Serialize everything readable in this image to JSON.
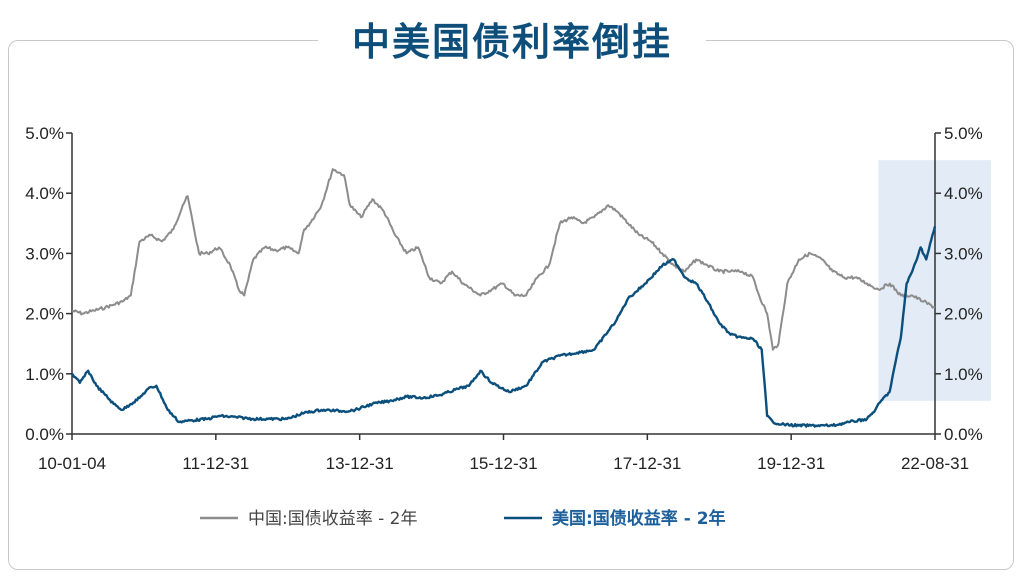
{
  "title": "中美国债利率倒挂",
  "chart_data": {
    "type": "line",
    "title": "中美国债利率倒挂",
    "x_range": [
      "2010-01-04",
      "2022-08-31"
    ],
    "x_tick_labels": [
      "10-01-04",
      "11-12-31",
      "13-12-31",
      "15-12-31",
      "17-12-31",
      "19-12-31",
      "22-08-31"
    ],
    "y_left": {
      "ylim": [
        0,
        5
      ],
      "ticks": [
        "0.0%",
        "1.0%",
        "2.0%",
        "3.0%",
        "4.0%",
        "5.0%"
      ]
    },
    "y_right": {
      "ylim": [
        0,
        5
      ],
      "ticks": [
        "0.0%",
        "1.0%",
        "2.0%",
        "3.0%",
        "4.0%",
        "5.0%"
      ]
    },
    "grid": false,
    "legend_position": "bottom",
    "highlight_region": {
      "x_start": "2021-11-01",
      "x_end": "2022-08-31",
      "y_range": [
        0.55,
        4.55
      ],
      "color": "#e3ecf6"
    },
    "series": [
      {
        "name": "中国:国债收益率 - 2年",
        "color": "#8c8c8c",
        "x": [
          "2010-01-04",
          "2010-03-01",
          "2010-05-01",
          "2010-07-01",
          "2010-08-15",
          "2010-10-01",
          "2010-11-15",
          "2011-01-01",
          "2011-03-01",
          "2011-05-01",
          "2011-07-01",
          "2011-08-20",
          "2011-09-15",
          "2011-10-20",
          "2011-11-15",
          "2012-01-01",
          "2012-03-01",
          "2012-05-01",
          "2012-06-15",
          "2012-07-15",
          "2012-09-01",
          "2012-11-01",
          "2013-01-01",
          "2013-03-01",
          "2013-05-01",
          "2013-06-01",
          "2013-07-01",
          "2013-09-01",
          "2013-11-01",
          "2013-12-31",
          "2014-02-01",
          "2014-04-01",
          "2014-06-01",
          "2014-08-01",
          "2014-10-01",
          "2014-12-01",
          "2015-02-01",
          "2015-04-01",
          "2015-06-01",
          "2015-08-01",
          "2015-10-01",
          "2015-12-31",
          "2016-03-01",
          "2016-05-01",
          "2016-07-01",
          "2016-09-01",
          "2016-11-01",
          "2017-01-01",
          "2017-03-01",
          "2017-05-01",
          "2017-07-01",
          "2017-09-01",
          "2017-11-15",
          "2018-01-01",
          "2018-03-01",
          "2018-05-01",
          "2018-07-01",
          "2018-09-01",
          "2018-11-01",
          "2019-01-01",
          "2019-03-01",
          "2019-05-01",
          "2019-07-01",
          "2019-09-01",
          "2019-11-01",
          "2019-12-31",
          "2020-02-01",
          "2020-03-15",
          "2020-04-15",
          "2020-05-15",
          "2020-07-01",
          "2020-09-01",
          "2020-11-01",
          "2021-01-01",
          "2021-03-01",
          "2021-05-01",
          "2021-07-01",
          "2021-09-01",
          "2021-11-01",
          "2022-01-01",
          "2022-03-01",
          "2022-05-01",
          "2022-07-01",
          "2022-08-31"
        ],
        "values": [
          2.05,
          2.0,
          2.05,
          2.1,
          2.15,
          2.2,
          2.3,
          3.2,
          3.3,
          3.2,
          3.4,
          3.8,
          3.95,
          3.4,
          3.0,
          3.0,
          3.1,
          2.8,
          2.4,
          2.3,
          2.9,
          3.1,
          3.05,
          3.1,
          3.0,
          3.4,
          3.5,
          3.8,
          4.4,
          4.3,
          3.8,
          3.6,
          3.9,
          3.7,
          3.3,
          3.0,
          3.1,
          2.6,
          2.5,
          2.7,
          2.5,
          2.3,
          2.4,
          2.5,
          2.3,
          2.3,
          2.6,
          2.8,
          3.5,
          3.6,
          3.5,
          3.6,
          3.8,
          3.7,
          3.5,
          3.3,
          3.2,
          3.0,
          2.8,
          2.7,
          2.9,
          2.8,
          2.7,
          2.7,
          2.7,
          2.6,
          2.3,
          2.0,
          1.4,
          1.5,
          2.5,
          2.9,
          3.0,
          2.9,
          2.7,
          2.6,
          2.6,
          2.5,
          2.4,
          2.5,
          2.3,
          2.3,
          2.2,
          2.1
        ]
      },
      {
        "name": "美国:国债收益率 - 2年",
        "color": "#0b4f7c",
        "x": [
          "2010-01-04",
          "2010-02-15",
          "2010-04-01",
          "2010-05-15",
          "2010-07-01",
          "2010-08-15",
          "2010-10-01",
          "2010-11-15",
          "2011-01-01",
          "2011-02-15",
          "2011-04-01",
          "2011-06-01",
          "2011-08-01",
          "2011-09-15",
          "2011-12-31",
          "2012-03-01",
          "2012-06-01",
          "2012-09-01",
          "2012-12-01",
          "2013-03-01",
          "2013-06-01",
          "2013-09-01",
          "2013-12-31",
          "2014-03-01",
          "2014-06-01",
          "2014-09-01",
          "2014-12-01",
          "2015-03-01",
          "2015-06-01",
          "2015-09-01",
          "2015-11-01",
          "2015-12-31",
          "2016-03-01",
          "2016-06-01",
          "2016-09-01",
          "2016-12-01",
          "2017-03-01",
          "2017-06-01",
          "2017-09-01",
          "2017-12-31",
          "2018-03-01",
          "2018-06-01",
          "2018-09-01",
          "2018-11-01",
          "2019-01-01",
          "2019-03-01",
          "2019-05-01",
          "2019-07-01",
          "2019-09-01",
          "2019-11-01",
          "2019-12-31",
          "2020-02-15",
          "2020-03-15",
          "2020-04-15",
          "2020-06-01",
          "2020-09-01",
          "2020-12-01",
          "2021-03-01",
          "2021-06-01",
          "2021-09-01",
          "2021-10-15",
          "2021-11-15",
          "2021-12-31",
          "2022-02-01",
          "2022-03-01",
          "2022-04-01",
          "2022-05-01",
          "2022-06-15",
          "2022-07-15",
          "2022-08-31"
        ],
        "values": [
          1.0,
          0.85,
          1.05,
          0.8,
          0.65,
          0.5,
          0.4,
          0.5,
          0.6,
          0.75,
          0.8,
          0.4,
          0.2,
          0.22,
          0.25,
          0.3,
          0.28,
          0.25,
          0.25,
          0.25,
          0.35,
          0.4,
          0.38,
          0.4,
          0.5,
          0.55,
          0.62,
          0.6,
          0.65,
          0.75,
          0.8,
          1.05,
          0.85,
          0.7,
          0.8,
          1.2,
          1.3,
          1.35,
          1.4,
          1.9,
          2.25,
          2.5,
          2.8,
          2.9,
          2.6,
          2.5,
          2.2,
          1.85,
          1.65,
          1.6,
          1.58,
          1.4,
          0.3,
          0.2,
          0.16,
          0.14,
          0.14,
          0.14,
          0.2,
          0.25,
          0.4,
          0.55,
          0.7,
          1.2,
          1.6,
          2.5,
          2.7,
          3.1,
          2.9,
          3.45
        ]
      }
    ]
  }
}
